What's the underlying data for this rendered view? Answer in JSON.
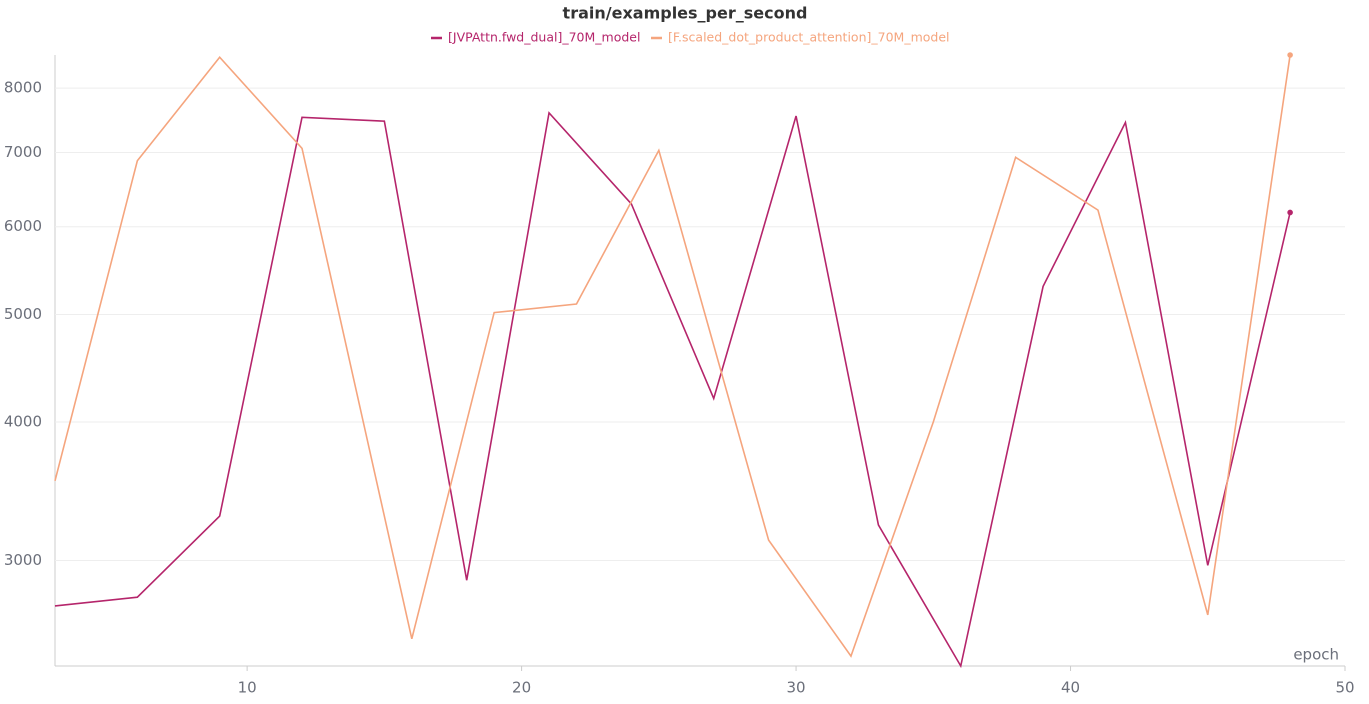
{
  "chart_data": {
    "type": "line",
    "title": "train/examples_per_second",
    "xlabel": "epoch",
    "yscale": "log",
    "grid": true,
    "xlim": [
      3,
      50
    ],
    "xticks": [
      10,
      20,
      30,
      40,
      50
    ],
    "ylim": [
      2410,
      8570
    ],
    "yticks": [
      3000,
      4000,
      5000,
      6000,
      7000,
      8000
    ],
    "series": [
      {
        "name": "[JVPAttn.fwd_dual]_70M_model",
        "color": "#b5256b",
        "x": [
          3,
          6,
          9,
          12,
          15,
          18,
          21,
          24,
          27,
          30,
          33,
          36,
          39,
          42,
          45,
          48
        ],
        "values": [
          2730,
          2780,
          3290,
          7530,
          7470,
          2880,
          7600,
          6290,
          4200,
          7550,
          3230,
          2410,
          5300,
          7450,
          2970,
          6180
        ]
      },
      {
        "name": "[F.scaled_dot_product_attention]_70M_model",
        "color": "#f5a57e",
        "x": [
          3,
          6,
          9,
          12,
          16,
          19,
          22,
          25,
          29,
          32,
          35,
          38,
          41,
          45,
          48
        ],
        "values": [
          3540,
          6880,
          8530,
          7060,
          2550,
          5020,
          5110,
          7030,
          3130,
          2460,
          4000,
          6930,
          6210,
          2680,
          8570
        ]
      }
    ]
  }
}
